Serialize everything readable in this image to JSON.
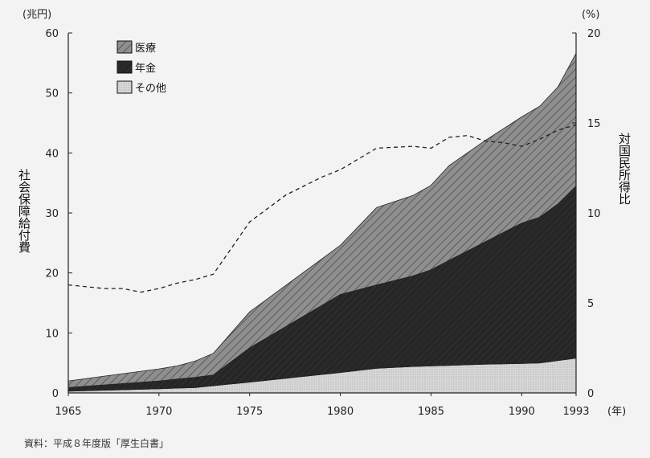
{
  "chart_data": {
    "type": "area",
    "x": [
      1965,
      1970,
      1971,
      1972,
      1973,
      1975,
      1980,
      1982,
      1984,
      1985,
      1986,
      1988,
      1990,
      1991,
      1992,
      1993
    ],
    "series": [
      {
        "name": "その他",
        "color": "#d4d4d4",
        "values": [
          0.3,
          0.7,
          0.8,
          0.9,
          1.2,
          1.8,
          3.4,
          4.1,
          4.4,
          4.5,
          4.6,
          4.8,
          4.9,
          5.0,
          5.4,
          5.8
        ]
      },
      {
        "name": "年金",
        "color": "#2b2b2b",
        "values": [
          0.6,
          1.3,
          1.5,
          1.7,
          1.8,
          5.7,
          13.0,
          13.9,
          15.1,
          16.0,
          17.5,
          20.4,
          23.4,
          24.3,
          26.1,
          28.7
        ]
      },
      {
        "name": "医療",
        "color": "#8a8a8a",
        "values": [
          1.1,
          2.0,
          2.2,
          2.7,
          3.6,
          6.0,
          8.2,
          12.9,
          13.4,
          14.1,
          15.8,
          16.9,
          17.7,
          18.5,
          19.5,
          22.1
        ]
      }
    ],
    "ratio_line": {
      "x": [
        1965,
        1967,
        1968,
        1969,
        1970,
        1971,
        1972,
        1973,
        1975,
        1977,
        1979,
        1980,
        1982,
        1984,
        1985,
        1986,
        1987,
        1988,
        1989,
        1990,
        1991,
        1992,
        1993
      ],
      "values": [
        6.0,
        5.8,
        5.8,
        5.6,
        5.8,
        6.1,
        6.3,
        6.6,
        9.5,
        11.0,
        12.0,
        12.4,
        13.6,
        13.7,
        13.6,
        14.2,
        14.3,
        14.0,
        13.9,
        13.7,
        14.1,
        14.6,
        14.9
      ]
    },
    "xticks": [
      1965,
      1970,
      1975,
      1980,
      1985,
      1990,
      1993
    ],
    "xlim": [
      1965,
      1993
    ],
    "ylim": [
      0,
      60
    ],
    "yticks_left": [
      0,
      10,
      20,
      30,
      40,
      50,
      60
    ],
    "yticks_right": [
      0,
      5,
      10,
      15,
      20
    ],
    "ylim_right": [
      0,
      20
    ],
    "left_unit": "(兆円)",
    "right_unit": "(%)",
    "x_unit": "(年)",
    "left_label": "社会保障給付費",
    "right_label": "対国民所得比",
    "legend": [
      {
        "label": "医療",
        "pattern": "hatch"
      },
      {
        "label": "年金",
        "pattern": "dark"
      },
      {
        "label": "その他",
        "pattern": "dots"
      }
    ],
    "legend_position": "top-left"
  },
  "source": "資料：平成８年度版「厚生白書」"
}
